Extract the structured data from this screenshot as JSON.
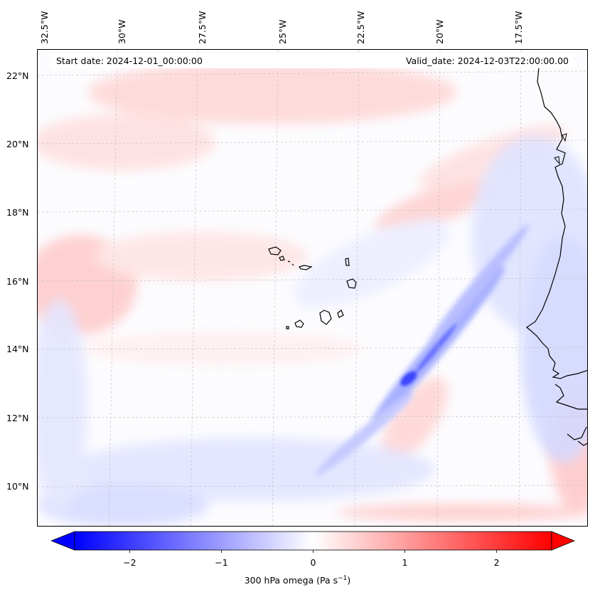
{
  "map": {
    "start_date": "Start date: 2024-12-01_00:00:00",
    "valid_date": "Valid_date: 2024-12-03T22:00:00.00",
    "lon_labels": [
      "32.5°W",
      "30°W",
      "27.5°W",
      "25°W",
      "22.5°W",
      "20°W",
      "17.5°W"
    ],
    "lat_labels": [
      "22°N",
      "20°N",
      "18°N",
      "16°N",
      "14°N",
      "12°N",
      "10°N"
    ],
    "extent": {
      "lon_min": -32.8,
      "lon_max": -15.8,
      "lat_min": 8.8,
      "lat_max": 22.8
    },
    "features": [
      "Cape Verde islands",
      "West African coastline (Mauritania, Senegal, Gambia, Guinea-Bissau)",
      "SW-NE band of strong ascent (negative omega) near 13°N 20.5°W"
    ]
  },
  "colorbar": {
    "label": "300 hPa omega (Pa s",
    "label_sup": "−1",
    "label_end": ")",
    "ticks": [
      "−2",
      "−1",
      "0",
      "1",
      "2"
    ],
    "tick_values": [
      -2,
      -1,
      0,
      1,
      2
    ],
    "range": [
      -2.6,
      2.6
    ],
    "colors": {
      "min": "#0000ff",
      "mid": "#ffffff",
      "max": "#ff0000"
    }
  }
}
